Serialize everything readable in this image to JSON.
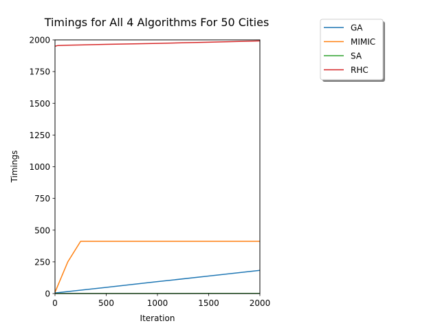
{
  "chart_data": {
    "type": "line",
    "title": "Timings for All 4 Algorithms For 50 Cities",
    "xlabel": "Iteration",
    "ylabel": "Timings",
    "xlim": [
      0,
      2000
    ],
    "ylim": [
      0,
      2000
    ],
    "xticks": [
      0,
      500,
      1000,
      1500,
      2000
    ],
    "xtick_labels": [
      "0",
      "500",
      "1000",
      "1500",
      "2000"
    ],
    "yticks": [
      0,
      250,
      500,
      750,
      1000,
      1250,
      1500,
      1750,
      2000
    ],
    "ytick_labels": [
      "0",
      "250",
      "500",
      "750",
      "1000",
      "1250",
      "1500",
      "1750",
      "2000"
    ],
    "grid": false,
    "legend_position": "outside-top-right",
    "series": [
      {
        "name": "GA",
        "color": "#1f77b4",
        "x": [
          0,
          500,
          1000,
          1500,
          2000
        ],
        "y": [
          5,
          49,
          94,
          138,
          183
        ]
      },
      {
        "name": "MIMIC",
        "color": "#ff7f0e",
        "x": [
          0,
          125,
          250,
          500,
          1000,
          1500,
          2000
        ],
        "y": [
          10,
          250,
          412,
          412,
          412,
          412,
          412
        ]
      },
      {
        "name": "SA",
        "color": "#2ca02c",
        "x": [
          0,
          500,
          1000,
          1500,
          2000
        ],
        "y": [
          0.5,
          0.7,
          0.9,
          1.1,
          1.3
        ]
      },
      {
        "name": "RHC",
        "color": "#d62728",
        "x": [
          0,
          25,
          125,
          250,
          500,
          1000,
          1500,
          2000
        ],
        "y": [
          1950,
          1955,
          1958,
          1960,
          1965,
          1972,
          1982,
          1992
        ]
      }
    ]
  }
}
